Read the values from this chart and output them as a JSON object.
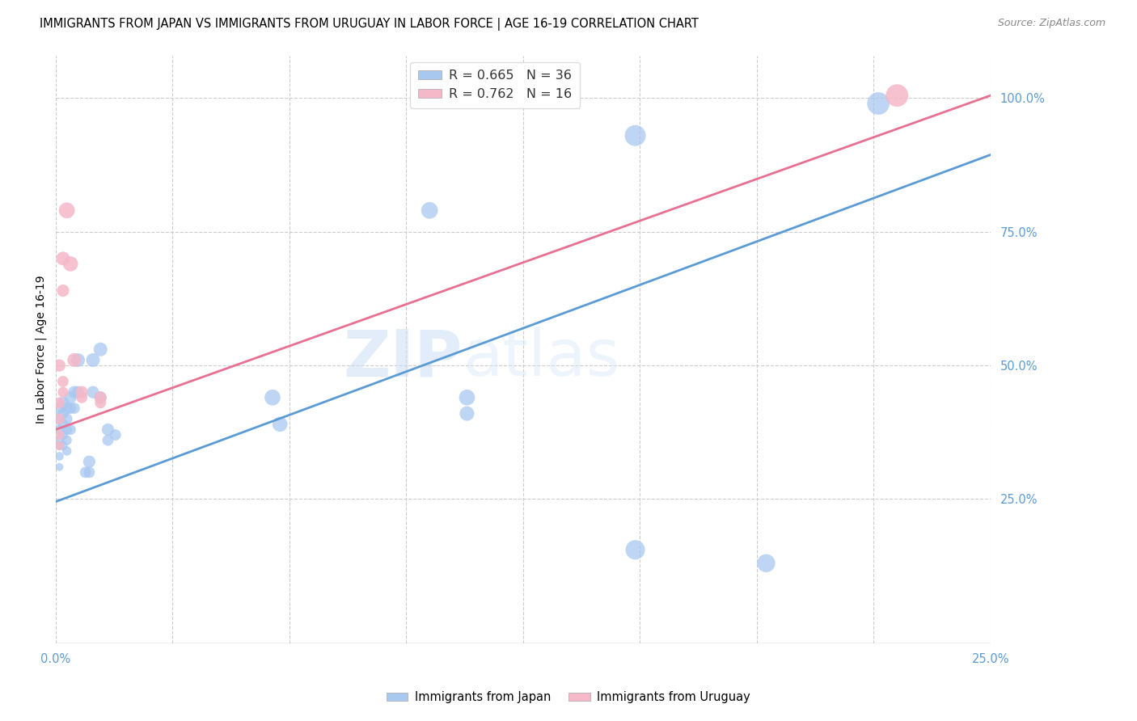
{
  "title": "IMMIGRANTS FROM JAPAN VS IMMIGRANTS FROM URUGUAY IN LABOR FORCE | AGE 16-19 CORRELATION CHART",
  "source": "Source: ZipAtlas.com",
  "ylabel": "In Labor Force | Age 16-19",
  "japan_color": "#a8c8f0",
  "uruguay_color": "#f5b8c8",
  "japan_line_color": "#5b9bd5",
  "uruguay_line_color": "#e87090",
  "xlim": [
    0.0,
    0.25
  ],
  "ylim": [
    -0.02,
    1.08
  ],
  "japan_line": [
    0.0,
    0.245,
    0.285,
    0.985
  ],
  "uruguay_line": [
    0.0,
    0.38,
    0.25,
    1.005
  ],
  "japan_points": [
    [
      0.001,
      0.42
    ],
    [
      0.001,
      0.4
    ],
    [
      0.001,
      0.38
    ],
    [
      0.001,
      0.36
    ],
    [
      0.001,
      0.35
    ],
    [
      0.001,
      0.33
    ],
    [
      0.001,
      0.31
    ],
    [
      0.002,
      0.43
    ],
    [
      0.002,
      0.41
    ],
    [
      0.002,
      0.39
    ],
    [
      0.002,
      0.37
    ],
    [
      0.002,
      0.35
    ],
    [
      0.003,
      0.42
    ],
    [
      0.003,
      0.4
    ],
    [
      0.003,
      0.38
    ],
    [
      0.003,
      0.36
    ],
    [
      0.003,
      0.34
    ],
    [
      0.004,
      0.44
    ],
    [
      0.004,
      0.42
    ],
    [
      0.004,
      0.38
    ],
    [
      0.005,
      0.45
    ],
    [
      0.005,
      0.42
    ],
    [
      0.006,
      0.51
    ],
    [
      0.006,
      0.45
    ],
    [
      0.008,
      0.3
    ],
    [
      0.009,
      0.32
    ],
    [
      0.009,
      0.3
    ],
    [
      0.01,
      0.51
    ],
    [
      0.01,
      0.45
    ],
    [
      0.012,
      0.53
    ],
    [
      0.012,
      0.44
    ],
    [
      0.014,
      0.38
    ],
    [
      0.014,
      0.36
    ],
    [
      0.016,
      0.37
    ],
    [
      0.058,
      0.44
    ],
    [
      0.06,
      0.39
    ],
    [
      0.1,
      0.79
    ],
    [
      0.11,
      0.44
    ],
    [
      0.11,
      0.41
    ],
    [
      0.155,
      0.93
    ],
    [
      0.155,
      0.155
    ],
    [
      0.22,
      0.99
    ],
    [
      0.19,
      0.13
    ]
  ],
  "japan_sizes": [
    120,
    100,
    90,
    80,
    70,
    60,
    50,
    120,
    100,
    90,
    80,
    70,
    120,
    100,
    90,
    80,
    70,
    120,
    100,
    90,
    120,
    100,
    150,
    120,
    100,
    120,
    100,
    150,
    120,
    150,
    120,
    120,
    100,
    100,
    200,
    180,
    220,
    200,
    170,
    350,
    300,
    400,
    260
  ],
  "uruguay_points": [
    [
      0.001,
      0.5
    ],
    [
      0.001,
      0.43
    ],
    [
      0.001,
      0.4
    ],
    [
      0.001,
      0.37
    ],
    [
      0.001,
      0.35
    ],
    [
      0.002,
      0.7
    ],
    [
      0.002,
      0.64
    ],
    [
      0.002,
      0.47
    ],
    [
      0.002,
      0.45
    ],
    [
      0.003,
      0.79
    ],
    [
      0.004,
      0.69
    ],
    [
      0.005,
      0.51
    ],
    [
      0.007,
      0.45
    ],
    [
      0.007,
      0.44
    ],
    [
      0.012,
      0.44
    ],
    [
      0.012,
      0.43
    ],
    [
      0.225,
      1.005
    ]
  ],
  "uruguay_sizes": [
    120,
    100,
    90,
    80,
    70,
    150,
    120,
    100,
    90,
    200,
    180,
    150,
    120,
    100,
    120,
    100,
    400
  ],
  "watermark_zip": "ZIP",
  "watermark_atlas": "atlas",
  "legend_japan_r": "0.665",
  "legend_japan_n": "36",
  "legend_uruguay_r": "0.762",
  "legend_uruguay_n": "16"
}
